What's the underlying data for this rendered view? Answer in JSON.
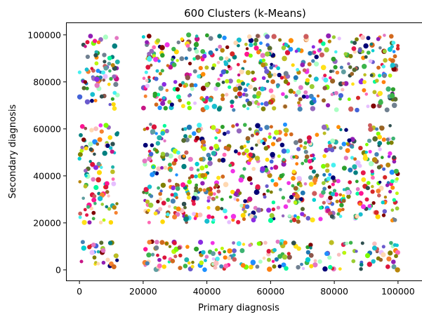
{
  "chart_data": {
    "type": "scatter",
    "title": "600 Clusters (k-Means)",
    "xlabel": "Primary diagnosis",
    "ylabel": "Secondary diagnosis",
    "xlim": [
      -4000,
      104000
    ],
    "ylim": [
      -4500,
      105000
    ],
    "xticks": [
      0,
      20000,
      40000,
      60000,
      80000,
      100000
    ],
    "yticks": [
      0,
      20000,
      40000,
      60000,
      80000,
      100000
    ],
    "xtick_labels": [
      "0",
      "20000",
      "40000",
      "60000",
      "80000",
      "100000"
    ],
    "ytick_labels": [
      "0",
      "20000",
      "40000",
      "60000",
      "80000",
      "100000"
    ],
    "grid": false,
    "legend": "none",
    "num_clusters": 600,
    "regions": [
      {
        "x": [
          0,
          12000
        ],
        "y": [
          0,
          12000
        ]
      },
      {
        "x": [
          0,
          12000
        ],
        "y": [
          20000,
          62000
        ]
      },
      {
        "x": [
          0,
          12000
        ],
        "y": [
          68000,
          100000
        ]
      },
      {
        "x": [
          20000,
          100000
        ],
        "y": [
          0,
          12000
        ]
      },
      {
        "x": [
          20000,
          72000
        ],
        "y": [
          20000,
          62000
        ]
      },
      {
        "x": [
          72000,
          100000
        ],
        "y": [
          20000,
          62000
        ]
      },
      {
        "x": [
          20000,
          100000
        ],
        "y": [
          68000,
          100000
        ]
      }
    ],
    "palette": [
      "#e6194b",
      "#3cb44b",
      "#ffe119",
      "#4363d8",
      "#f58231",
      "#911eb4",
      "#46f0f0",
      "#f032e6",
      "#bcf60c",
      "#fabebe",
      "#008080",
      "#e6beff",
      "#9a6324",
      "#800000",
      "#aaffc3",
      "#808000",
      "#ffd8b1",
      "#000075",
      "#2f4f4f",
      "#1e90ff",
      "#ff1493",
      "#00ced1",
      "#7cfc00",
      "#ff8c00",
      "#8a2be2",
      "#dc143c",
      "#00fa9a",
      "#b8860b",
      "#4682b4",
      "#d2691e",
      "#9acd32",
      "#ff69b4",
      "#20b2aa",
      "#6a5acd",
      "#cd5c5c",
      "#3cb371",
      "#c71585",
      "#ffd700",
      "#1f77b4",
      "#2ca02c",
      "#d62728",
      "#9467bd",
      "#8c564b",
      "#17becf",
      "#e377c2",
      "#bcbd22",
      "#ff7f0e",
      "#5f9ea0",
      "#708090",
      "#556b2f"
    ]
  }
}
